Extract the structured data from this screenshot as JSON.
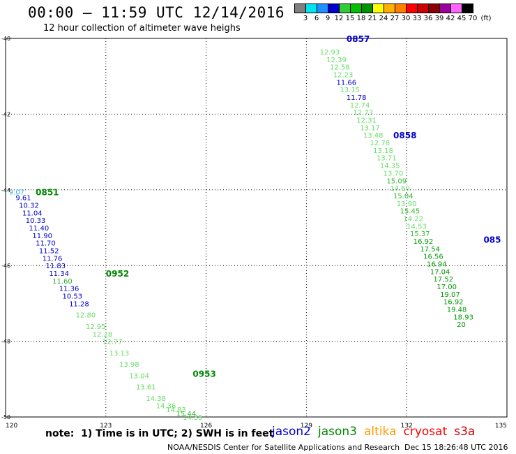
{
  "header": {
    "title": "00:00 – 11:59 UTC 12/14/2016",
    "subtitle": "12 hour collection of altimeter wave heighs"
  },
  "legend": {
    "colors": [
      "#808080",
      "#00e5ee",
      "#1e90ff",
      "#0000cd",
      "#32cd32",
      "#00c000",
      "#009000",
      "#ffff00",
      "#ffb000",
      "#ff8000",
      "#ff0000",
      "#cc0000",
      "#8b0000",
      "#990099",
      "#ff66ff",
      "#000000"
    ],
    "labels": [
      "3",
      "6",
      "9",
      "12",
      "15",
      "18",
      "21",
      "24",
      "27",
      "30",
      "33",
      "36",
      "39",
      "42",
      "45",
      "70"
    ],
    "unit": "(ft)"
  },
  "footer": {
    "note": "note:  1) Time is in UTC; 2) SWH is in feet",
    "satellites": [
      {
        "name": "jason2",
        "color": "#0000cc"
      },
      {
        "name": "jason3",
        "color": "#008800"
      },
      {
        "name": "altika",
        "color": "#ff9900"
      },
      {
        "name": "cryosat",
        "color": "#ff0000"
      },
      {
        "name": "s3a",
        "color": "#cc0000"
      }
    ],
    "credit": "NOAA/NESDIS Center for Satellite Applications and Research",
    "timestamp": "Dec 15 18:26:48 UTC 2016"
  },
  "chart_data": {
    "type": "scatter",
    "title": "00:00 – 11:59 UTC 12/14/2016",
    "subtitle": "12 hour collection of altimeter wave heighs",
    "xlim": [
      120,
      135
    ],
    "ylim": [
      -50,
      -40
    ],
    "x_ticks": [
      "120",
      "123",
      "126",
      "129",
      "132",
      "135"
    ],
    "y_ticks": [
      "-40",
      "-42",
      "-44",
      "-46",
      "-48",
      "-50"
    ],
    "grid": "dotted",
    "series": [
      {
        "name": "jason2",
        "color": "#0000cc",
        "points": [
          {
            "x": 129.4,
            "y": -40.35,
            "v": "12.93",
            "c": "#66dd66"
          },
          {
            "x": 129.6,
            "y": -40.55,
            "v": "12.39",
            "c": "#66dd66"
          },
          {
            "x": 129.7,
            "y": -40.75,
            "v": "12.58",
            "c": "#66dd66"
          },
          {
            "x": 129.8,
            "y": -40.95,
            "v": "12.23",
            "c": "#66dd66"
          },
          {
            "x": 129.9,
            "y": -41.15,
            "v": "11.66",
            "c": "#0000cc"
          },
          {
            "x": 130.0,
            "y": -41.35,
            "v": "13.15",
            "c": "#66dd66"
          },
          {
            "x": 130.2,
            "y": -41.55,
            "v": "11.78",
            "c": "#0000cc"
          },
          {
            "x": 130.3,
            "y": -41.75,
            "v": "12.74",
            "c": "#66dd66"
          },
          {
            "x": 130.4,
            "y": -41.95,
            "v": "12.73",
            "c": "#66dd66"
          },
          {
            "x": 130.5,
            "y": -42.15,
            "v": "12.31",
            "c": "#66dd66"
          },
          {
            "x": 130.6,
            "y": -42.35,
            "v": "13.17",
            "c": "#66dd66"
          },
          {
            "x": 130.7,
            "y": -42.55,
            "v": "13.48",
            "c": "#66dd66"
          },
          {
            "x": 130.9,
            "y": -42.75,
            "v": "12.78",
            "c": "#66dd66"
          },
          {
            "x": 131.0,
            "y": -42.95,
            "v": "13.18",
            "c": "#66dd66"
          },
          {
            "x": 131.1,
            "y": -43.15,
            "v": "13.71",
            "c": "#66dd66"
          },
          {
            "x": 131.2,
            "y": -43.35,
            "v": "14.35",
            "c": "#66dd66"
          },
          {
            "x": 131.3,
            "y": -43.55,
            "v": "13.70",
            "c": "#66dd66"
          },
          {
            "x": 131.4,
            "y": -43.75,
            "v": "15.09",
            "c": "#33bb33"
          },
          {
            "x": 131.5,
            "y": -43.95,
            "v": "14.60",
            "c": "#66dd66"
          },
          {
            "x": 131.6,
            "y": -44.15,
            "v": "15.04",
            "c": "#33bb33"
          },
          {
            "x": 131.7,
            "y": -44.35,
            "v": "13.90",
            "c": "#66dd66"
          },
          {
            "x": 131.8,
            "y": -44.55,
            "v": "15.45",
            "c": "#33bb33"
          },
          {
            "x": 131.9,
            "y": -44.75,
            "v": "14.22",
            "c": "#66dd66"
          },
          {
            "x": 132.0,
            "y": -44.95,
            "v": "14.53",
            "c": "#66dd66"
          },
          {
            "x": 132.1,
            "y": -45.15,
            "v": "15.37",
            "c": "#33bb33"
          },
          {
            "x": 132.2,
            "y": -45.35,
            "v": "16.92",
            "c": "#009900"
          },
          {
            "x": 132.4,
            "y": -45.55,
            "v": "17.54",
            "c": "#009900"
          },
          {
            "x": 132.5,
            "y": -45.75,
            "v": "16.56",
            "c": "#009900"
          },
          {
            "x": 132.6,
            "y": -45.95,
            "v": "16.94",
            "c": "#009900"
          },
          {
            "x": 132.7,
            "y": -46.15,
            "v": "17.04",
            "c": "#009900"
          },
          {
            "x": 132.8,
            "y": -46.35,
            "v": "17.52",
            "c": "#009900"
          },
          {
            "x": 132.9,
            "y": -46.55,
            "v": "17.00",
            "c": "#009900"
          },
          {
            "x": 133.0,
            "y": -46.75,
            "v": "19.07",
            "c": "#009900"
          },
          {
            "x": 133.1,
            "y": -46.95,
            "v": "16.92",
            "c": "#009900"
          },
          {
            "x": 133.2,
            "y": -47.15,
            "v": "19.48",
            "c": "#009900"
          },
          {
            "x": 133.4,
            "y": -47.35,
            "v": "18.93",
            "c": "#009900"
          },
          {
            "x": 133.5,
            "y": -47.55,
            "v": "20",
            "c": "#009900"
          }
        ]
      },
      {
        "name": "jason3",
        "color": "#008800",
        "points": [
          {
            "x": 120.1,
            "y": -44.05,
            "v": "9.07",
            "c": "#33aaee"
          },
          {
            "x": 120.3,
            "y": -44.2,
            "v": "9.61",
            "c": "#0000cc"
          },
          {
            "x": 120.4,
            "y": -44.4,
            "v": "10.32",
            "c": "#0000cc"
          },
          {
            "x": 120.5,
            "y": -44.6,
            "v": "11.04",
            "c": "#0000cc"
          },
          {
            "x": 120.6,
            "y": -44.8,
            "v": "10.33",
            "c": "#0000cc"
          },
          {
            "x": 120.7,
            "y": -45.0,
            "v": "11.40",
            "c": "#0000cc"
          },
          {
            "x": 120.8,
            "y": -45.2,
            "v": "11.90",
            "c": "#0000cc"
          },
          {
            "x": 120.9,
            "y": -45.4,
            "v": "11.70",
            "c": "#0000cc"
          },
          {
            "x": 121.0,
            "y": -45.6,
            "v": "11.52",
            "c": "#0000cc"
          },
          {
            "x": 121.1,
            "y": -45.8,
            "v": "11.76",
            "c": "#0000cc"
          },
          {
            "x": 121.2,
            "y": -46.0,
            "v": "11.83",
            "c": "#0000cc"
          },
          {
            "x": 121.3,
            "y": -46.2,
            "v": "11.34",
            "c": "#0000cc"
          },
          {
            "x": 121.4,
            "y": -46.4,
            "v": "11.60",
            "c": "#33aa33"
          },
          {
            "x": 121.6,
            "y": -46.6,
            "v": "11.36",
            "c": "#0000cc"
          },
          {
            "x": 121.7,
            "y": -46.8,
            "v": "10.53",
            "c": "#0000cc"
          },
          {
            "x": 121.9,
            "y": -47.0,
            "v": "11.28",
            "c": "#0000cc"
          },
          {
            "x": 122.1,
            "y": -47.3,
            "v": "12.80",
            "c": "#66dd66"
          },
          {
            "x": 122.4,
            "y": -47.6,
            "v": "12.95",
            "c": "#66dd66"
          },
          {
            "x": 122.6,
            "y": -47.8,
            "v": "12.28",
            "c": "#66dd66"
          },
          {
            "x": 122.9,
            "y": -48.0,
            "v": "12.77",
            "c": "#66dd66"
          },
          {
            "x": 123.1,
            "y": -48.3,
            "v": "13.13",
            "c": "#66dd66"
          },
          {
            "x": 123.4,
            "y": -48.6,
            "v": "13.98",
            "c": "#66dd66"
          },
          {
            "x": 123.7,
            "y": -48.9,
            "v": "13.04",
            "c": "#66dd66"
          },
          {
            "x": 123.9,
            "y": -49.2,
            "v": "13.61",
            "c": "#66dd66"
          },
          {
            "x": 124.2,
            "y": -49.5,
            "v": "14.38",
            "c": "#66dd66"
          },
          {
            "x": 124.5,
            "y": -49.7,
            "v": "14.36",
            "c": "#66dd66"
          },
          {
            "x": 124.8,
            "y": -49.8,
            "v": "14.83",
            "c": "#66dd66"
          },
          {
            "x": 125.1,
            "y": -49.9,
            "v": "15.44",
            "c": "#33bb33"
          },
          {
            "x": 125.3,
            "y": -50.0,
            "v": "14.35",
            "c": "#66dd66"
          }
        ]
      }
    ],
    "time_labels": [
      {
        "x": 130.2,
        "y": -40.0,
        "t": "0857",
        "c": "#0000cc"
      },
      {
        "x": 131.6,
        "y": -42.55,
        "t": "0858",
        "c": "#0000cc"
      },
      {
        "x": 134.3,
        "y": -45.3,
        "t": "085",
        "c": "#0000cc"
      },
      {
        "x": 120.9,
        "y": -44.05,
        "t": "0851",
        "c": "#008800"
      },
      {
        "x": 123.0,
        "y": -46.2,
        "t": "0952",
        "c": "#008800"
      },
      {
        "x": 125.6,
        "y": -48.85,
        "t": "0953",
        "c": "#008800"
      }
    ]
  }
}
